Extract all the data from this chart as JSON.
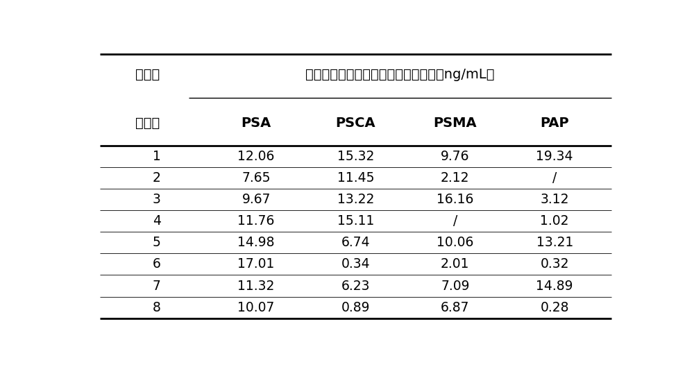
{
  "title_line1": "血清样",
  "title_line2": "本编号",
  "header_merged": "患者血清中前列腺肿瘤标志物的浓度（ng/mL）",
  "col_headers": [
    "PSA",
    "PSCA",
    "PSMA",
    "PAP"
  ],
  "row_labels": [
    "1",
    "2",
    "3",
    "4",
    "5",
    "6",
    "7",
    "8"
  ],
  "table_data": [
    [
      "12.06",
      "15.32",
      "9.76",
      "19.34"
    ],
    [
      "7.65",
      "11.45",
      "2.12",
      "/"
    ],
    [
      "9.67",
      "13.22",
      "16.16",
      "3.12"
    ],
    [
      "11.76",
      "15.11",
      "/",
      "1.02"
    ],
    [
      "14.98",
      "6.74",
      "10.06",
      "13.21"
    ],
    [
      "17.01",
      "0.34",
      "2.01",
      "0.32"
    ],
    [
      "11.32",
      "6.23",
      "7.09",
      "14.89"
    ],
    [
      "10.07",
      "0.89",
      "6.87",
      "0.28"
    ]
  ],
  "bg_color": "#ffffff",
  "text_color": "#000000",
  "line_color": "#000000",
  "font_size_chinese": 14,
  "font_size_data": 13.5,
  "font_size_header_eng": 14
}
